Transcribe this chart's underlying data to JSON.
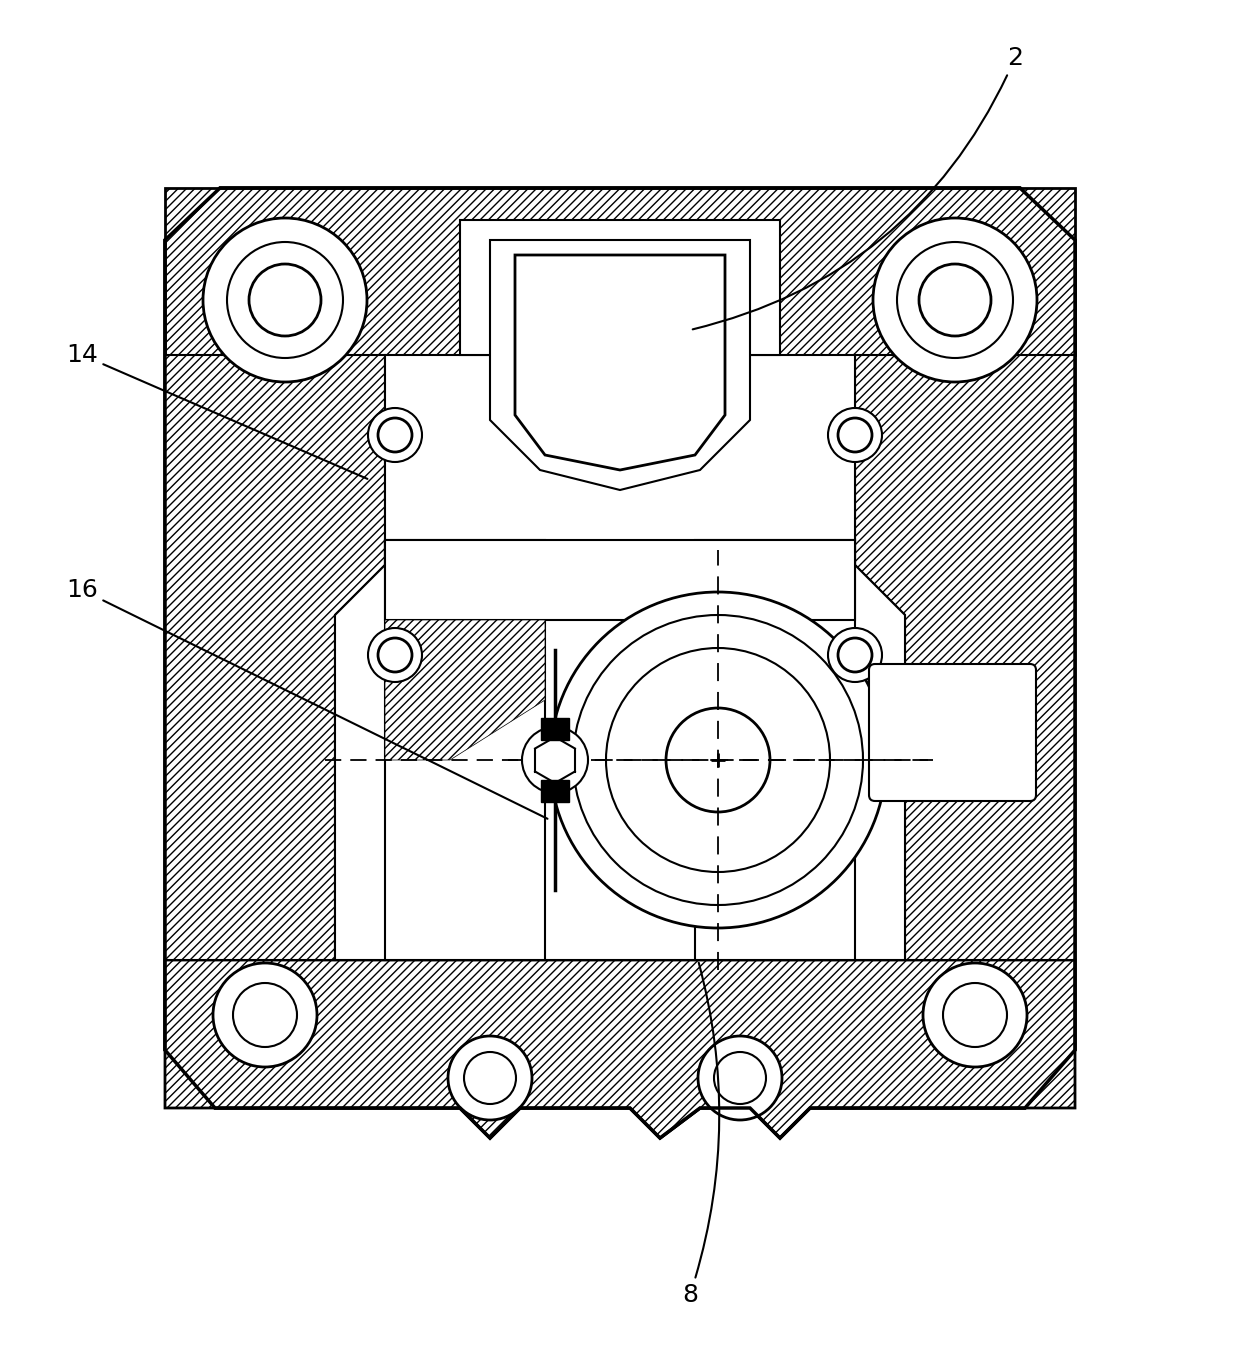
{
  "bg_color": "#ffffff",
  "line_color": "#000000",
  "label_2": "2",
  "label_8": "8",
  "label_14": "14",
  "label_16": "16",
  "label_fontsize": 18,
  "figsize": [
    12.4,
    13.48
  ],
  "dpi": 100
}
